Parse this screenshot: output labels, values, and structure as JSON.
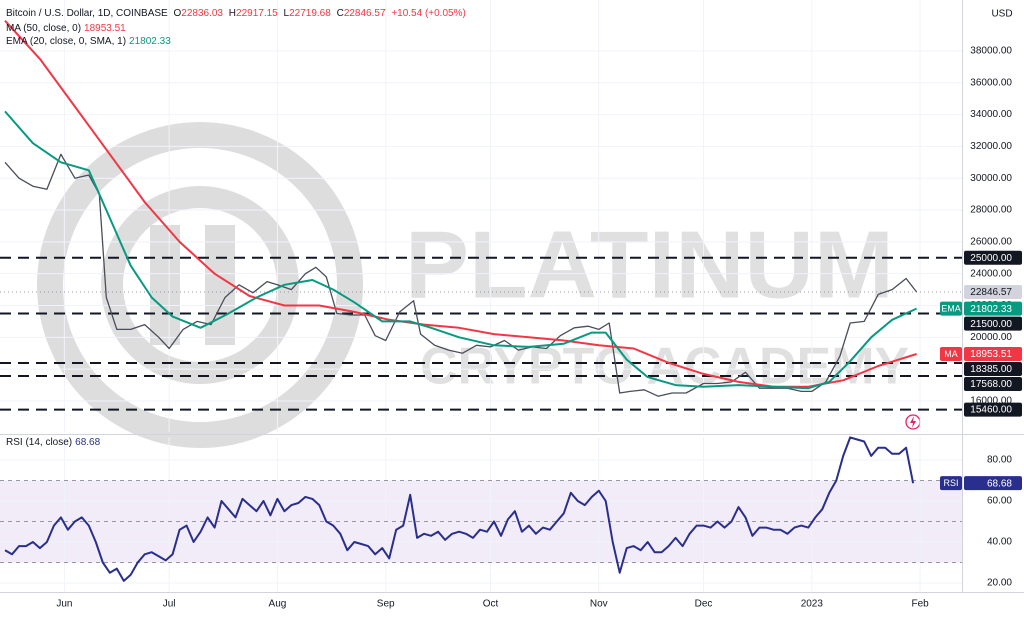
{
  "chart_data": [
    {
      "type": "line",
      "title": "Bitcoin / U.S. Dollar, 1D, COINBASE",
      "ohlc": [
        {
          "label": "O",
          "value": 22836.03
        },
        {
          "label": "H",
          "value": 22917.15
        },
        {
          "label": "L",
          "value": 22719.68
        },
        {
          "label": "C",
          "value": 22846.57
        }
      ],
      "change": "+10.54 (+0.05%)",
      "y_label": "USD",
      "watermark": [
        "PLATINUM",
        "CRYPTO ACADEMY"
      ],
      "xlim": [
        0,
        274
      ],
      "ylim": [
        14050,
        41200
      ],
      "yticks": [
        {
          "value": 16000,
          "label": "16000.00"
        },
        {
          "value": 18000,
          "label": "18000.00"
        },
        {
          "value": 20000,
          "label": "20000.00"
        },
        {
          "value": 22000,
          "label": "22000.00"
        },
        {
          "value": 24000,
          "label": "24000.00"
        },
        {
          "value": 26000,
          "label": "26000.00"
        },
        {
          "value": 28000,
          "label": "28000.00"
        },
        {
          "value": 30000,
          "label": "30000.00"
        },
        {
          "value": 32000,
          "label": "32000.00"
        },
        {
          "value": 34000,
          "label": "34000.00"
        },
        {
          "value": 36000,
          "label": "36000.00"
        },
        {
          "value": 38000,
          "label": "38000.00"
        }
      ],
      "grid": true,
      "series": [
        {
          "color": "#4a4e5a",
          "x": [
            0,
            4,
            8,
            12,
            16,
            20,
            24,
            27,
            29,
            32,
            36,
            40,
            44,
            47,
            51,
            55,
            59,
            63,
            67,
            71,
            75,
            78,
            82,
            86,
            89,
            92,
            95,
            99,
            103,
            106,
            109,
            113,
            117,
            119,
            123,
            127,
            131,
            135,
            139,
            143,
            147,
            151,
            155,
            159,
            163,
            167,
            170,
            173,
            176,
            179,
            183,
            187,
            191,
            195,
            200,
            204,
            208,
            212,
            216,
            220,
            224,
            228,
            231,
            235,
            239,
            242,
            246,
            250,
            254,
            258,
            261
          ],
          "values": [
            31000,
            30000,
            29500,
            29300,
            31500,
            30000,
            30200,
            29000,
            22500,
            20500,
            20500,
            20800,
            20000,
            19300,
            20500,
            21000,
            20800,
            22500,
            23300,
            22800,
            23500,
            23300,
            23000,
            24000,
            24400,
            23800,
            21500,
            21400,
            21400,
            20100,
            19800,
            21600,
            22300,
            20200,
            19500,
            19200,
            19000,
            19500,
            19400,
            19800,
            19200,
            19400,
            19300,
            20100,
            20600,
            20700,
            20500,
            20900,
            16500,
            16600,
            16700,
            16300,
            16500,
            16500,
            17100,
            17100,
            17200,
            17800,
            16800,
            16800,
            16800,
            16600,
            16600,
            17200,
            18800,
            20900,
            21000,
            22700,
            23000,
            23700,
            22846.57
          ]
        },
        {
          "name": "MA (50, close, 0)",
          "color": "#f23645",
          "x": [
            0,
            10,
            20,
            30,
            40,
            50,
            60,
            70,
            80,
            90,
            100,
            110,
            120,
            130,
            140,
            150,
            160,
            170,
            180,
            190,
            200,
            210,
            220,
            230,
            240,
            250,
            261
          ],
          "values": [
            39900,
            37500,
            34500,
            31500,
            28500,
            26000,
            24000,
            22600,
            22000,
            22000,
            21600,
            21100,
            20800,
            20600,
            20200,
            20000,
            19800,
            19500,
            19300,
            18400,
            17700,
            17200,
            16900,
            16900,
            17300,
            18200,
            18953.51
          ]
        },
        {
          "name": "EMA (20, close, 0, SMA, 1)",
          "color": "#089981",
          "x": [
            0,
            8,
            16,
            24,
            30,
            36,
            42,
            48,
            56,
            64,
            72,
            80,
            88,
            94,
            100,
            108,
            116,
            122,
            130,
            140,
            150,
            160,
            168,
            172,
            178,
            184,
            192,
            200,
            210,
            220,
            230,
            236,
            242,
            248,
            254,
            261
          ],
          "values": [
            34200,
            32200,
            31000,
            30500,
            27500,
            24500,
            22500,
            21300,
            20600,
            21500,
            22500,
            23300,
            23600,
            23000,
            22200,
            21000,
            21000,
            20600,
            20000,
            19500,
            19400,
            19600,
            20300,
            20300,
            18600,
            17500,
            17000,
            16900,
            17000,
            16900,
            16800,
            17200,
            18500,
            20000,
            21100,
            21802.33
          ]
        }
      ],
      "markers": [
        {
          "value": 25000,
          "label": "25000.00",
          "color": "#131722",
          "text_color": "#ffffff",
          "line": "dashed"
        },
        {
          "value": 22846.57,
          "label": "22846.57",
          "color": "#d1d4dc",
          "text_color": "#131722",
          "line": "dotted"
        },
        {
          "value": 21802.33,
          "label": "21802.33",
          "color": "#089981",
          "text_color": "#ffffff",
          "tag": "EMA"
        },
        {
          "value": 21500,
          "label": "21500.00",
          "color": "#131722",
          "text_color": "#ffffff",
          "line": "dashed"
        },
        {
          "value": 18953.51,
          "label": "18953.51",
          "color": "#f23645",
          "text_color": "#ffffff",
          "tag": "MA"
        },
        {
          "value": 18385,
          "label": "18385.00",
          "color": "#131722",
          "text_color": "#ffffff",
          "line": "dashed"
        },
        {
          "value": 17568,
          "label": "17568.00",
          "color": "#131722",
          "text_color": "#ffffff",
          "line": "dashed"
        },
        {
          "value": 15460,
          "label": "15460.00",
          "color": "#131722",
          "text_color": "#ffffff",
          "line": "dashed"
        }
      ]
    },
    {
      "type": "line",
      "xlim": [
        0,
        274
      ],
      "xticks": [
        {
          "value": 17,
          "label": "Jun"
        },
        {
          "value": 47,
          "label": "Jul"
        },
        {
          "value": 78,
          "label": "Aug"
        },
        {
          "value": 109,
          "label": "Sep"
        },
        {
          "value": 139,
          "label": "Oct"
        },
        {
          "value": 170,
          "label": "Nov"
        },
        {
          "value": 200,
          "label": "Dec"
        },
        {
          "value": 231,
          "label": "2023"
        },
        {
          "value": 262,
          "label": "Feb"
        }
      ],
      "ylim": [
        15.6,
        91.2
      ],
      "yticks": [
        {
          "value": 20,
          "label": "20.00"
        },
        {
          "value": 40,
          "label": "40.00"
        },
        {
          "value": 60,
          "label": "60.00"
        },
        {
          "value": 80,
          "label": "80.00"
        }
      ],
      "grid": true,
      "band": [
        30,
        70
      ],
      "levels": [
        30,
        50,
        70
      ],
      "series": [
        {
          "name": "RSI (14, close)",
          "color": "#2a2e8c",
          "x": [
            0,
            2,
            4,
            6,
            8,
            10,
            12,
            14,
            16,
            18,
            20,
            22,
            24,
            26,
            28,
            30,
            32,
            34,
            36,
            38,
            40,
            42,
            44,
            46,
            48,
            50,
            52,
            54,
            56,
            58,
            60,
            62,
            64,
            66,
            68,
            70,
            72,
            74,
            76,
            78,
            80,
            82,
            84,
            86,
            88,
            90,
            92,
            94,
            96,
            98,
            100,
            102,
            104,
            106,
            108,
            110,
            112,
            114,
            116,
            118,
            120,
            122,
            124,
            126,
            128,
            130,
            132,
            134,
            136,
            138,
            140,
            142,
            144,
            146,
            148,
            150,
            152,
            154,
            156,
            158,
            160,
            162,
            164,
            166,
            168,
            170,
            172,
            174,
            176,
            178,
            180,
            182,
            184,
            186,
            188,
            190,
            192,
            194,
            196,
            198,
            200,
            202,
            204,
            206,
            208,
            210,
            212,
            214,
            216,
            218,
            220,
            222,
            224,
            226,
            228,
            230,
            232,
            234,
            236,
            238,
            240,
            242,
            244,
            246,
            248,
            250,
            252,
            254,
            256,
            258,
            260
          ],
          "values": [
            36,
            34,
            38,
            38,
            40,
            37,
            40,
            48,
            52,
            46,
            50,
            52,
            48,
            40,
            30,
            25,
            27,
            21,
            24,
            30,
            34,
            35,
            33,
            31,
            34,
            46,
            48,
            40,
            45,
            52,
            47,
            60,
            56,
            52,
            61,
            58,
            55,
            60,
            53,
            61,
            55,
            58,
            59,
            62,
            61,
            58,
            50,
            48,
            44,
            36,
            40,
            39,
            38,
            34,
            37,
            32,
            46,
            48,
            63,
            42,
            44,
            43,
            45,
            41,
            44,
            45,
            44,
            42,
            46,
            45,
            50,
            43,
            51,
            55,
            45,
            48,
            44,
            47,
            46,
            50,
            54,
            64,
            60,
            58,
            62,
            65,
            60,
            40,
            25,
            37,
            38,
            36,
            40,
            35,
            35,
            38,
            42,
            38,
            44,
            48,
            48,
            47,
            50,
            47,
            50,
            57,
            52,
            43,
            47,
            47,
            46,
            46,
            44,
            47,
            48,
            47,
            52,
            56,
            64,
            70,
            82,
            91,
            90,
            89,
            82,
            86,
            86,
            83,
            83,
            86,
            68.68
          ]
        }
      ],
      "markers": [
        {
          "value": 68.68,
          "label": "68.68",
          "color": "#2a2e8c",
          "text_color": "#ffffff",
          "tag": "RSI"
        }
      ]
    }
  ]
}
